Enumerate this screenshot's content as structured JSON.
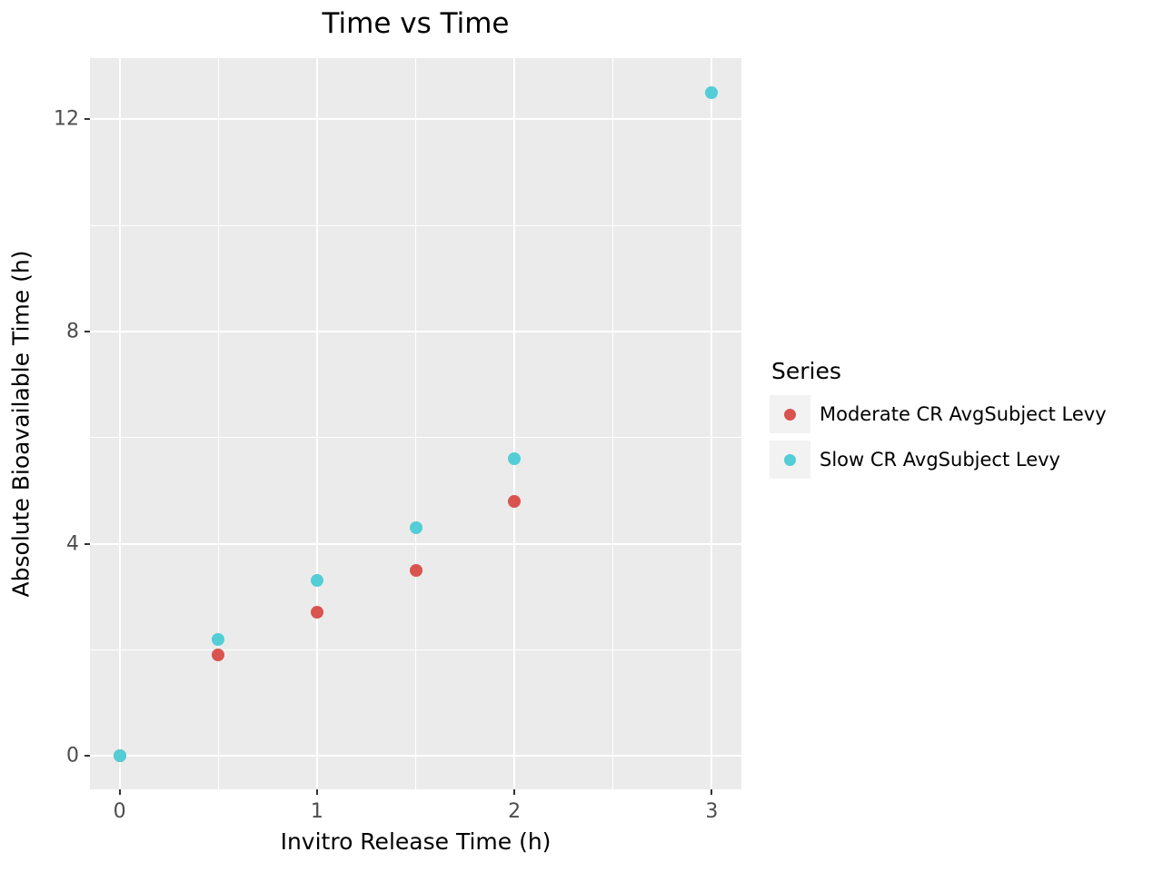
{
  "figure": {
    "background": "#FFFFFF"
  },
  "chart_data": {
    "type": "scatter",
    "title": "Time vs Time",
    "xlabel": "Invitro Release Time (h)",
    "ylabel": "Absolute Bioavailable Time (h)",
    "xlim": [
      -0.15,
      3.15
    ],
    "ylim": [
      -0.63,
      13.15
    ],
    "x_ticks": [
      0,
      1,
      2,
      3
    ],
    "y_ticks": [
      0,
      4,
      8,
      12
    ],
    "x_minor_ticks": [
      0.5,
      1.5,
      2.5
    ],
    "y_minor_ticks": [
      2,
      6,
      10
    ],
    "grid": "on",
    "panel_background": "#EBEBEB",
    "gridline_color": "#FFFFFF",
    "tick_color": "#333333",
    "tick_label_color": "#4D4D4D",
    "text_color": "#000000",
    "legend": {
      "title": "Series",
      "position": "right",
      "key_background": "#F2F2F2"
    },
    "series": [
      {
        "name": "Moderate CR AvgSubject Levy",
        "color": "#D9544F",
        "marker": "circle",
        "points": [
          [
            0,
            0
          ],
          [
            0.5,
            1.9
          ],
          [
            1,
            2.7
          ],
          [
            1.5,
            3.5
          ],
          [
            2,
            4.8
          ]
        ]
      },
      {
        "name": "Slow CR AvgSubject Levy",
        "color": "#53CDD6",
        "marker": "circle",
        "points": [
          [
            0,
            0
          ],
          [
            0.5,
            2.2
          ],
          [
            1,
            3.3
          ],
          [
            1.5,
            4.3
          ],
          [
            2,
            5.6
          ],
          [
            3,
            12.5
          ]
        ]
      }
    ]
  }
}
